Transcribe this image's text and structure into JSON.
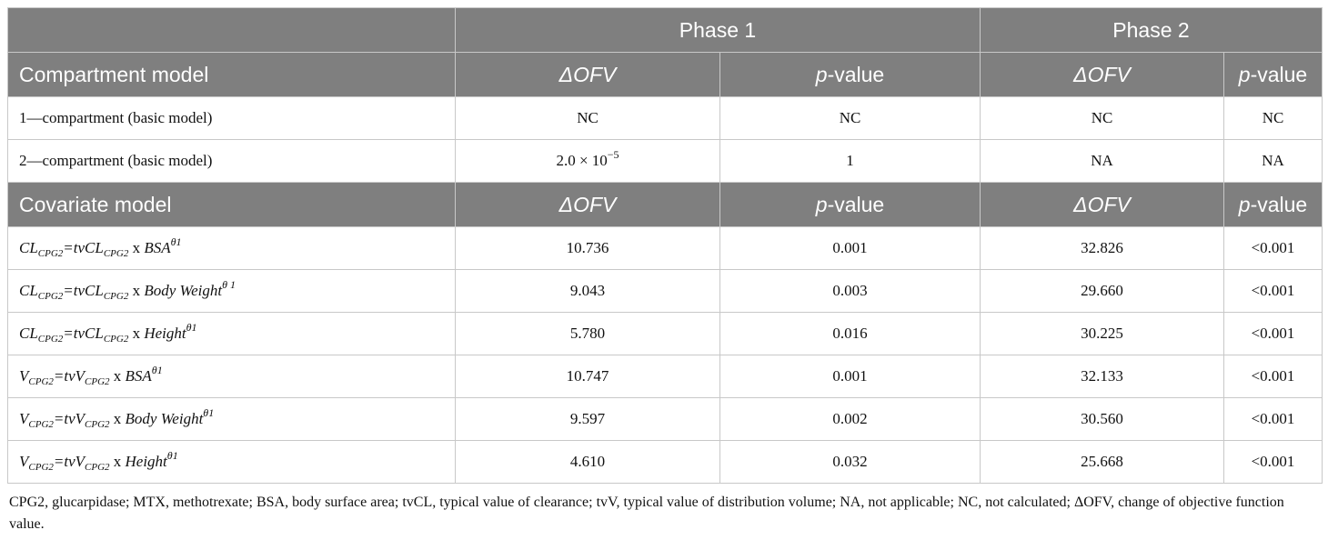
{
  "header": {
    "phase1": "Phase 1",
    "phase2": "Phase 2"
  },
  "compartment_section": {
    "title": "Compartment model",
    "col_dofv": "ΔOFV",
    "col_p_italic": "p",
    "col_p_rest": "-value",
    "rows": [
      {
        "label": "1—compartment (basic model)",
        "p1_dofv": "NC",
        "p1_p": "NC",
        "p2_dofv": "NC",
        "p2_p": "NC"
      },
      {
        "label": "2—compartment (basic model)",
        "p1_dofv_base": "2.0 × 10",
        "p1_dofv_exp": "−5",
        "p1_p": "1",
        "p2_dofv": "NA",
        "p2_p": "NA"
      }
    ]
  },
  "covariate_section": {
    "title": "Covariate model",
    "col_dofv": "ΔOFV",
    "col_p_italic": "p",
    "col_p_rest": "-value",
    "rows": [
      {
        "lhs": "CL",
        "lhs_sub": "CPG2",
        "eq": "=tvCL",
        "eq_sub": "CPG2",
        "x": " x ",
        "cov": "BSA",
        "exp": "θ1",
        "p1_dofv": "10.736",
        "p1_p": "0.001",
        "p2_dofv": "32.826",
        "p2_p": "<0.001"
      },
      {
        "lhs": "CL",
        "lhs_sub": "CPG2",
        "eq": "=tvCL",
        "eq_sub": "CPG2",
        "x": " x ",
        "cov": "Body Weight",
        "exp": "θ 1",
        "p1_dofv": "9.043",
        "p1_p": "0.003",
        "p2_dofv": "29.660",
        "p2_p": "<0.001"
      },
      {
        "lhs": "CL",
        "lhs_sub": "CPG2",
        "eq": "=tvCL",
        "eq_sub": "CPG2",
        "x": " x ",
        "cov": "Height",
        "exp": "θ1",
        "p1_dofv": "5.780",
        "p1_p": "0.016",
        "p2_dofv": "30.225",
        "p2_p": "<0.001"
      },
      {
        "lhs": "V",
        "lhs_sub": "CPG2",
        "eq": "=tvV",
        "eq_sub": "CPG2",
        "x": " x ",
        "cov": "BSA",
        "exp": "θ1",
        "p1_dofv": "10.747",
        "p1_p": "0.001",
        "p2_dofv": "32.133",
        "p2_p": "<0.001"
      },
      {
        "lhs": "V",
        "lhs_sub": "CPG2",
        "eq": "=tvV",
        "eq_sub": "CPG2",
        "x": " x ",
        "cov": "Body Weight",
        "exp": "θ1",
        "p1_dofv": "9.597",
        "p1_p": "0.002",
        "p2_dofv": "30.560",
        "p2_p": "<0.001"
      },
      {
        "lhs": "V",
        "lhs_sub": "CPG2",
        "eq": "=tvV",
        "eq_sub": "CPG2",
        "x": " x ",
        "cov": "Height",
        "exp": "θ1",
        "p1_dofv": "4.610",
        "p1_p": "0.032",
        "p2_dofv": "25.668",
        "p2_p": "<0.001"
      }
    ]
  },
  "footnote": "CPG2, glucarpidase; MTX, methotrexate; BSA, body surface area; tvCL, typical value of clearance; tvV, typical value of distribution volume; NA, not applicable; NC, not calculated; ΔOFV, change of objective function value.",
  "colors": {
    "header_bg": "#7f7f7f",
    "header_text": "#ffffff",
    "border": "#c8c8c8"
  }
}
